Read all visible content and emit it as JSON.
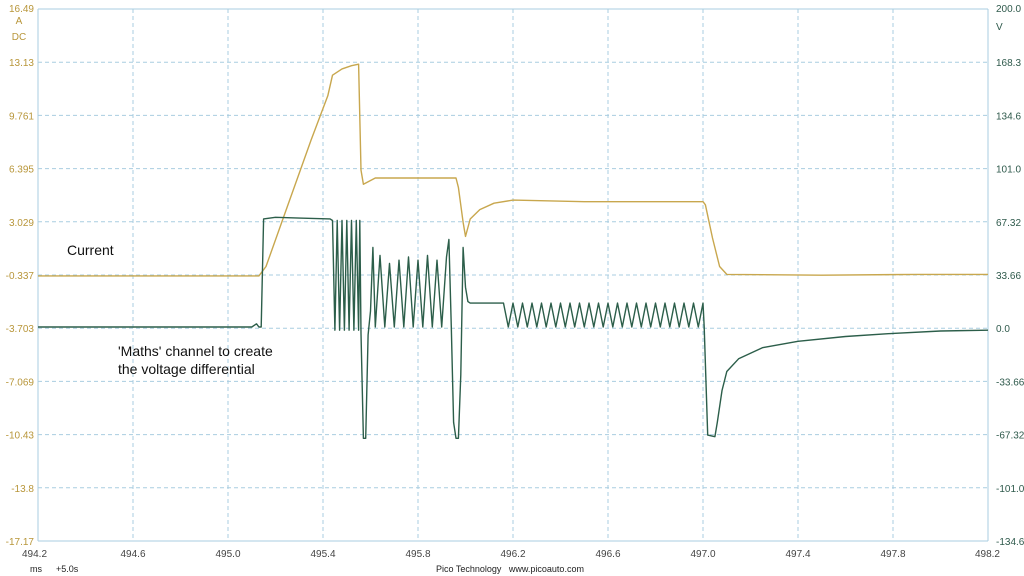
{
  "chart_data": {
    "type": "line",
    "x_ticks": [
      "494.2",
      "494.6",
      "495.0",
      "495.4",
      "495.8",
      "496.2",
      "496.6",
      "497.0",
      "497.4",
      "497.8",
      "498.2"
    ],
    "xlim": [
      494.2,
      498.2
    ],
    "x_unit": "ms",
    "x_offset": "+5.0s",
    "left_axis": {
      "unit": "A",
      "coupling": "DC",
      "ylim": [
        -17.17,
        16.49
      ],
      "ticks": [
        "16.49",
        "13.13",
        "9.761",
        "6.395",
        "3.029",
        "-0.337",
        "-3.703",
        "-7.069",
        "-10.43",
        "-13.8",
        "-17.17"
      ]
    },
    "right_axis": {
      "unit": "V",
      "ylim": [
        -134.6,
        200.0
      ],
      "ticks": [
        "200.0",
        "168.3",
        "134.6",
        "101.0",
        "67.32",
        "33.66",
        "0.0",
        "-33.66",
        "-67.32",
        "-101.0",
        "-134.6"
      ]
    },
    "grid": true,
    "series": [
      {
        "name": "Current",
        "axis": "left",
        "color": "#c8a74e",
        "points": [
          [
            494.2,
            -0.4
          ],
          [
            495.13,
            -0.4
          ],
          [
            495.16,
            0.2
          ],
          [
            495.25,
            4.0
          ],
          [
            495.35,
            8.2
          ],
          [
            495.42,
            11.0
          ],
          [
            495.44,
            12.3
          ],
          [
            495.48,
            12.7
          ],
          [
            495.52,
            12.9
          ],
          [
            495.55,
            13.0
          ],
          [
            495.56,
            6.3
          ],
          [
            495.57,
            5.4
          ],
          [
            495.62,
            5.8
          ],
          [
            495.7,
            5.8
          ],
          [
            495.8,
            5.8
          ],
          [
            495.9,
            5.8
          ],
          [
            495.96,
            5.8
          ],
          [
            495.97,
            5.2
          ],
          [
            495.99,
            3.0
          ],
          [
            496.0,
            2.1
          ],
          [
            496.02,
            3.2
          ],
          [
            496.06,
            3.8
          ],
          [
            496.12,
            4.2
          ],
          [
            496.2,
            4.4
          ],
          [
            496.5,
            4.3
          ],
          [
            496.8,
            4.3
          ],
          [
            497.0,
            4.3
          ],
          [
            497.01,
            4.1
          ],
          [
            497.04,
            2.0
          ],
          [
            497.07,
            0.2
          ],
          [
            497.1,
            -0.3
          ],
          [
            497.5,
            -0.35
          ],
          [
            497.9,
            -0.3
          ],
          [
            498.2,
            -0.3
          ]
        ]
      },
      {
        "name": "'Maths' channel to create the voltage differential",
        "axis": "right",
        "color": "#2c5e4a",
        "points": [
          [
            494.2,
            0.0
          ],
          [
            495.1,
            0.0
          ],
          [
            495.12,
            2.0
          ],
          [
            495.13,
            0.0
          ],
          [
            495.14,
            0.0
          ],
          [
            495.15,
            68.0
          ],
          [
            495.2,
            69.0
          ],
          [
            495.3,
            68.5
          ],
          [
            495.43,
            68.0
          ],
          [
            495.44,
            67.0
          ],
          [
            495.45,
            -2.0
          ],
          [
            495.46,
            67.0
          ],
          [
            495.47,
            -2.0
          ],
          [
            495.48,
            67.0
          ],
          [
            495.49,
            -2.0
          ],
          [
            495.5,
            67.0
          ],
          [
            495.51,
            -2.0
          ],
          [
            495.52,
            67.0
          ],
          [
            495.53,
            -2.0
          ],
          [
            495.54,
            67.0
          ],
          [
            495.55,
            -2.0
          ],
          [
            495.555,
            67.0
          ],
          [
            495.56,
            -4.0
          ],
          [
            495.57,
            -70.0
          ],
          [
            495.58,
            -70.0
          ],
          [
            495.59,
            -5.0
          ],
          [
            495.6,
            10.0
          ],
          [
            495.61,
            50.0
          ],
          [
            495.62,
            0.0
          ],
          [
            495.64,
            45.0
          ],
          [
            495.66,
            0.0
          ],
          [
            495.68,
            40.0
          ],
          [
            495.7,
            0.0
          ],
          [
            495.72,
            42.0
          ],
          [
            495.74,
            0.0
          ],
          [
            495.76,
            44.0
          ],
          [
            495.78,
            0.0
          ],
          [
            495.8,
            42.0
          ],
          [
            495.82,
            0.0
          ],
          [
            495.84,
            45.0
          ],
          [
            495.86,
            0.0
          ],
          [
            495.88,
            42.0
          ],
          [
            495.9,
            0.0
          ],
          [
            495.92,
            44.0
          ],
          [
            495.93,
            55.0
          ],
          [
            495.94,
            0.0
          ],
          [
            495.95,
            -60.0
          ],
          [
            495.96,
            -70.0
          ],
          [
            495.97,
            -70.0
          ],
          [
            495.98,
            -30.0
          ],
          [
            495.99,
            50.0
          ],
          [
            496.0,
            25.0
          ],
          [
            496.01,
            16.0
          ],
          [
            496.02,
            15.0
          ],
          [
            496.15,
            15.0
          ],
          [
            496.16,
            15.0
          ],
          [
            496.18,
            0.0
          ],
          [
            496.2,
            15.0
          ],
          [
            496.22,
            0.0
          ],
          [
            496.24,
            15.0
          ],
          [
            496.26,
            0.0
          ],
          [
            496.28,
            15.0
          ],
          [
            496.3,
            0.0
          ],
          [
            496.32,
            15.0
          ],
          [
            496.34,
            0.0
          ],
          [
            496.36,
            15.0
          ],
          [
            496.38,
            0.0
          ],
          [
            496.4,
            15.0
          ],
          [
            496.42,
            0.0
          ],
          [
            496.44,
            15.0
          ],
          [
            496.46,
            0.0
          ],
          [
            496.48,
            15.0
          ],
          [
            496.5,
            0.0
          ],
          [
            496.52,
            15.0
          ],
          [
            496.54,
            0.0
          ],
          [
            496.56,
            15.0
          ],
          [
            496.58,
            0.0
          ],
          [
            496.6,
            15.0
          ],
          [
            496.62,
            0.0
          ],
          [
            496.64,
            15.0
          ],
          [
            496.66,
            0.0
          ],
          [
            496.68,
            15.0
          ],
          [
            496.7,
            0.0
          ],
          [
            496.72,
            15.0
          ],
          [
            496.74,
            0.0
          ],
          [
            496.76,
            15.0
          ],
          [
            496.78,
            0.0
          ],
          [
            496.8,
            15.0
          ],
          [
            496.82,
            0.0
          ],
          [
            496.84,
            15.0
          ],
          [
            496.86,
            0.0
          ],
          [
            496.88,
            15.0
          ],
          [
            496.9,
            0.0
          ],
          [
            496.92,
            15.0
          ],
          [
            496.94,
            0.0
          ],
          [
            496.96,
            15.0
          ],
          [
            496.98,
            0.0
          ],
          [
            497.0,
            15.0
          ],
          [
            497.005,
            0.0
          ],
          [
            497.02,
            -68.0
          ],
          [
            497.05,
            -69.0
          ],
          [
            497.06,
            -60.0
          ],
          [
            497.08,
            -40.0
          ],
          [
            497.1,
            -28.0
          ],
          [
            497.15,
            -20.0
          ],
          [
            497.25,
            -13.0
          ],
          [
            497.4,
            -9.0
          ],
          [
            497.6,
            -6.0
          ],
          [
            497.8,
            -4.0
          ],
          [
            498.0,
            -2.5
          ],
          [
            498.2,
            -2.0
          ]
        ]
      }
    ],
    "annotations": [
      "Current",
      "'Maths' channel to create",
      "the voltage differential"
    ],
    "footer": "Pico Technology   www.picoauto.com"
  }
}
